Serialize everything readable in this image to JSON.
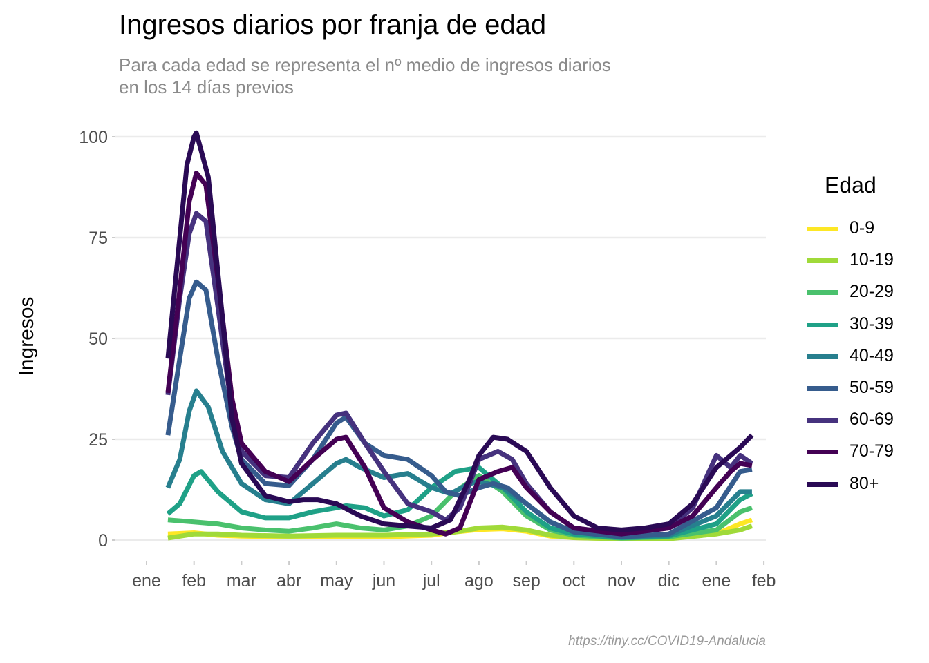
{
  "chart_data": {
    "type": "line",
    "title": "Ingresos diarios por franja de edad",
    "subtitle": [
      "Para cada edad se representa el nº medio de ingresos diarios",
      "en los 14 días previos"
    ],
    "ylabel": "Ingresos",
    "xlabel": "",
    "ylim": [
      0,
      100
    ],
    "yticks": [
      0,
      25,
      50,
      75,
      100
    ],
    "x_ticks": [
      "ene",
      "feb",
      "mar",
      "abr",
      "may",
      "jun",
      "jul",
      "ago",
      "sep",
      "oct",
      "nov",
      "dic",
      "ene",
      "feb"
    ],
    "x_range": [
      0,
      13
    ],
    "grid": "horizontal",
    "legend": {
      "title": "Edad",
      "position": "right"
    },
    "caption": "https://tiny.cc/COVID19-Andalucia",
    "series": [
      {
        "name": "0-9",
        "color": "#fde725",
        "points": [
          [
            0.45,
            1.5
          ],
          [
            1.0,
            1.8
          ],
          [
            1.5,
            1.2
          ],
          [
            2.0,
            1.0
          ],
          [
            3.0,
            0.8
          ],
          [
            4.0,
            0.8
          ],
          [
            5.0,
            0.8
          ],
          [
            6.0,
            1.2
          ],
          [
            6.5,
            2.0
          ],
          [
            7.0,
            2.6
          ],
          [
            7.5,
            2.8
          ],
          [
            8.0,
            2.2
          ],
          [
            8.5,
            1.0
          ],
          [
            9.0,
            0.6
          ],
          [
            10.0,
            0.3
          ],
          [
            11.0,
            0.4
          ],
          [
            12.0,
            1.5
          ],
          [
            12.5,
            4.0
          ],
          [
            12.75,
            5.0
          ]
        ]
      },
      {
        "name": "10-19",
        "color": "#a0da39",
        "points": [
          [
            0.45,
            0.5
          ],
          [
            1.0,
            1.5
          ],
          [
            1.5,
            1.5
          ],
          [
            2.0,
            1.2
          ],
          [
            3.0,
            1.0
          ],
          [
            4.0,
            1.2
          ],
          [
            5.0,
            1.2
          ],
          [
            6.0,
            1.5
          ],
          [
            6.5,
            2.0
          ],
          [
            7.0,
            3.0
          ],
          [
            7.5,
            3.2
          ],
          [
            8.0,
            2.5
          ],
          [
            8.5,
            1.2
          ],
          [
            9.0,
            0.6
          ],
          [
            10.0,
            0.3
          ],
          [
            11.0,
            0.3
          ],
          [
            12.0,
            1.5
          ],
          [
            12.5,
            2.5
          ],
          [
            12.75,
            3.5
          ]
        ]
      },
      {
        "name": "20-29",
        "color": "#4ac16d",
        "points": [
          [
            0.45,
            5.0
          ],
          [
            1.0,
            4.5
          ],
          [
            1.5,
            4.0
          ],
          [
            2.0,
            3.0
          ],
          [
            2.5,
            2.5
          ],
          [
            3.0,
            2.2
          ],
          [
            3.5,
            3.0
          ],
          [
            4.0,
            4.0
          ],
          [
            4.5,
            3.0
          ],
          [
            5.0,
            2.5
          ],
          [
            5.5,
            3.5
          ],
          [
            6.0,
            6.0
          ],
          [
            6.5,
            12.0
          ],
          [
            7.0,
            16.0
          ],
          [
            7.5,
            12.0
          ],
          [
            8.0,
            6.0
          ],
          [
            8.5,
            2.5
          ],
          [
            9.0,
            1.2
          ],
          [
            10.0,
            0.5
          ],
          [
            11.0,
            0.8
          ],
          [
            12.0,
            2.5
          ],
          [
            12.5,
            7.0
          ],
          [
            12.75,
            8.0
          ]
        ]
      },
      {
        "name": "30-39",
        "color": "#1fa187",
        "points": [
          [
            0.45,
            6.5
          ],
          [
            0.7,
            9.0
          ],
          [
            1.0,
            16.0
          ],
          [
            1.15,
            17.0
          ],
          [
            1.5,
            12.0
          ],
          [
            2.0,
            7.0
          ],
          [
            2.5,
            5.5
          ],
          [
            3.0,
            5.5
          ],
          [
            3.5,
            7.0
          ],
          [
            4.0,
            8.0
          ],
          [
            4.2,
            8.5
          ],
          [
            4.6,
            8.0
          ],
          [
            5.0,
            6.0
          ],
          [
            5.5,
            7.5
          ],
          [
            6.0,
            13.0
          ],
          [
            6.5,
            17.0
          ],
          [
            7.0,
            18.0
          ],
          [
            7.5,
            13.0
          ],
          [
            8.0,
            7.0
          ],
          [
            8.5,
            3.0
          ],
          [
            9.0,
            1.5
          ],
          [
            10.0,
            0.6
          ],
          [
            11.0,
            1.0
          ],
          [
            12.0,
            4.0
          ],
          [
            12.5,
            10.0
          ],
          [
            12.75,
            11.5
          ]
        ]
      },
      {
        "name": "40-49",
        "color": "#277f8e",
        "points": [
          [
            0.45,
            13.0
          ],
          [
            0.7,
            20.0
          ],
          [
            0.9,
            32.0
          ],
          [
            1.05,
            37.0
          ],
          [
            1.3,
            33.0
          ],
          [
            1.6,
            22.0
          ],
          [
            2.0,
            14.0
          ],
          [
            2.5,
            10.0
          ],
          [
            3.0,
            9.0
          ],
          [
            3.5,
            14.0
          ],
          [
            4.0,
            19.0
          ],
          [
            4.2,
            20.0
          ],
          [
            4.5,
            18.0
          ],
          [
            5.0,
            15.5
          ],
          [
            5.5,
            16.5
          ],
          [
            6.0,
            13.0
          ],
          [
            6.4,
            11.5
          ],
          [
            6.8,
            14.0
          ],
          [
            7.0,
            14.5
          ],
          [
            7.5,
            13.0
          ],
          [
            8.0,
            9.0
          ],
          [
            8.5,
            4.5
          ],
          [
            9.0,
            2.0
          ],
          [
            10.0,
            0.8
          ],
          [
            11.0,
            1.2
          ],
          [
            12.0,
            6.0
          ],
          [
            12.5,
            12.0
          ],
          [
            12.75,
            12.0
          ]
        ]
      },
      {
        "name": "50-59",
        "color": "#365c8d",
        "points": [
          [
            0.45,
            26.0
          ],
          [
            0.7,
            45.0
          ],
          [
            0.9,
            60.0
          ],
          [
            1.05,
            64.0
          ],
          [
            1.25,
            62.0
          ],
          [
            1.5,
            45.0
          ],
          [
            1.8,
            28.0
          ],
          [
            2.0,
            20.0
          ],
          [
            2.5,
            14.0
          ],
          [
            3.0,
            13.5
          ],
          [
            3.5,
            20.0
          ],
          [
            4.0,
            29.0
          ],
          [
            4.2,
            30.5
          ],
          [
            4.6,
            24.0
          ],
          [
            5.0,
            21.0
          ],
          [
            5.5,
            20.0
          ],
          [
            6.0,
            16.0
          ],
          [
            6.3,
            12.0
          ],
          [
            6.6,
            11.0
          ],
          [
            7.0,
            13.0
          ],
          [
            7.3,
            14.0
          ],
          [
            7.6,
            13.0
          ],
          [
            8.0,
            9.0
          ],
          [
            8.5,
            4.5
          ],
          [
            9.0,
            2.0
          ],
          [
            10.0,
            0.8
          ],
          [
            11.0,
            1.5
          ],
          [
            12.0,
            8.0
          ],
          [
            12.5,
            17.0
          ],
          [
            12.75,
            17.5
          ]
        ]
      },
      {
        "name": "60-69",
        "color": "#46327e",
        "points": [
          [
            0.45,
            36.0
          ],
          [
            0.7,
            60.0
          ],
          [
            0.9,
            76.0
          ],
          [
            1.05,
            81.0
          ],
          [
            1.25,
            79.0
          ],
          [
            1.5,
            58.0
          ],
          [
            1.8,
            32.0
          ],
          [
            2.0,
            22.0
          ],
          [
            2.5,
            16.0
          ],
          [
            3.0,
            15.5
          ],
          [
            3.5,
            24.0
          ],
          [
            4.0,
            31.0
          ],
          [
            4.2,
            31.5
          ],
          [
            4.6,
            24.0
          ],
          [
            5.0,
            17.0
          ],
          [
            5.5,
            9.0
          ],
          [
            6.0,
            7.0
          ],
          [
            6.3,
            5.0
          ],
          [
            6.6,
            8.0
          ],
          [
            7.0,
            20.0
          ],
          [
            7.4,
            22.0
          ],
          [
            7.7,
            20.0
          ],
          [
            8.0,
            14.0
          ],
          [
            8.5,
            7.0
          ],
          [
            9.0,
            3.0
          ],
          [
            10.0,
            1.5
          ],
          [
            11.0,
            3.0
          ],
          [
            11.5,
            8.0
          ],
          [
            12.0,
            21.0
          ],
          [
            12.3,
            18.0
          ],
          [
            12.5,
            21.0
          ],
          [
            12.75,
            19.0
          ]
        ]
      },
      {
        "name": "70-79",
        "color": "#440154",
        "points": [
          [
            0.45,
            36.5
          ],
          [
            0.7,
            62.0
          ],
          [
            0.9,
            84.0
          ],
          [
            1.05,
            91.0
          ],
          [
            1.25,
            88.0
          ],
          [
            1.5,
            65.0
          ],
          [
            1.8,
            35.0
          ],
          [
            2.0,
            24.0
          ],
          [
            2.5,
            17.0
          ],
          [
            3.0,
            14.5
          ],
          [
            3.5,
            20.0
          ],
          [
            4.0,
            25.0
          ],
          [
            4.2,
            25.5
          ],
          [
            4.6,
            18.0
          ],
          [
            5.0,
            8.0
          ],
          [
            5.5,
            4.5
          ],
          [
            6.0,
            2.5
          ],
          [
            6.3,
            1.5
          ],
          [
            6.6,
            3.0
          ],
          [
            7.0,
            15.0
          ],
          [
            7.4,
            17.0
          ],
          [
            7.7,
            18.0
          ],
          [
            8.0,
            13.0
          ],
          [
            8.5,
            7.0
          ],
          [
            9.0,
            3.0
          ],
          [
            10.0,
            1.5
          ],
          [
            11.0,
            3.0
          ],
          [
            11.5,
            6.0
          ],
          [
            12.0,
            13.0
          ],
          [
            12.3,
            17.0
          ],
          [
            12.5,
            19.0
          ],
          [
            12.75,
            18.5
          ]
        ]
      },
      {
        "name": "80+",
        "color": "#2a0a55",
        "points": [
          [
            0.45,
            45.0
          ],
          [
            0.7,
            75.0
          ],
          [
            0.85,
            93.0
          ],
          [
            1.0,
            100.0
          ],
          [
            1.05,
            101.0
          ],
          [
            1.3,
            90.0
          ],
          [
            1.6,
            55.0
          ],
          [
            1.8,
            30.0
          ],
          [
            2.0,
            19.0
          ],
          [
            2.5,
            11.0
          ],
          [
            3.0,
            9.5
          ],
          [
            3.3,
            10.0
          ],
          [
            3.6,
            10.0
          ],
          [
            4.0,
            9.0
          ],
          [
            4.5,
            6.0
          ],
          [
            5.0,
            4.0
          ],
          [
            5.5,
            3.5
          ],
          [
            6.0,
            3.0
          ],
          [
            6.4,
            5.0
          ],
          [
            6.8,
            15.0
          ],
          [
            7.0,
            21.0
          ],
          [
            7.3,
            25.5
          ],
          [
            7.6,
            25.0
          ],
          [
            8.0,
            22.0
          ],
          [
            8.5,
            13.0
          ],
          [
            9.0,
            6.0
          ],
          [
            9.5,
            3.0
          ],
          [
            10.0,
            2.5
          ],
          [
            10.5,
            3.0
          ],
          [
            11.0,
            4.0
          ],
          [
            11.5,
            9.0
          ],
          [
            12.0,
            18.0
          ],
          [
            12.5,
            23.0
          ],
          [
            12.75,
            26.0
          ]
        ]
      }
    ]
  }
}
